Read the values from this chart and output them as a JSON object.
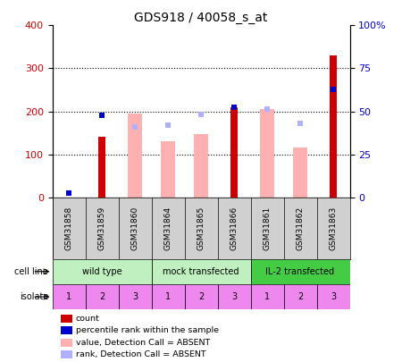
{
  "title": "GDS918 / 40058_s_at",
  "samples": [
    "GSM31858",
    "GSM31859",
    "GSM31860",
    "GSM31864",
    "GSM31865",
    "GSM31866",
    "GSM31861",
    "GSM31862",
    "GSM31863"
  ],
  "count_values": [
    0,
    140,
    0,
    0,
    0,
    210,
    0,
    0,
    330
  ],
  "percentile_values": [
    10,
    190,
    0,
    0,
    0,
    210,
    0,
    0,
    250
  ],
  "value_absent": [
    0,
    0,
    195,
    130,
    148,
    0,
    205,
    115,
    0
  ],
  "rank_absent": [
    10,
    0,
    163,
    168,
    192,
    0,
    205,
    172,
    0
  ],
  "count_color": "#cc0000",
  "percentile_color": "#0000cc",
  "value_absent_color": "#ffb0b0",
  "rank_absent_color": "#b0b0ff",
  "ylim_left": [
    0,
    400
  ],
  "ylim_right": [
    0,
    100
  ],
  "yticks_left": [
    0,
    100,
    200,
    300,
    400
  ],
  "yticks_right": [
    0,
    25,
    50,
    75,
    100
  ],
  "yticklabels_right": [
    "0",
    "25",
    "50",
    "75",
    "100%"
  ],
  "cell_line_groups": [
    {
      "label": "wild type",
      "start": 0,
      "end": 3,
      "color": "#c0f0c0"
    },
    {
      "label": "mock transfected",
      "start": 3,
      "end": 6,
      "color": "#c0f0c0"
    },
    {
      "label": "IL-2 transfected",
      "start": 6,
      "end": 9,
      "color": "#44cc44"
    }
  ],
  "isolate_values": [
    "1",
    "2",
    "3",
    "1",
    "2",
    "3",
    "1",
    "2",
    "3"
  ],
  "background_color": "#ffffff",
  "tick_label_area_color": "#d0d0d0",
  "legend_items": [
    {
      "color": "#cc0000",
      "label": "count"
    },
    {
      "color": "#0000cc",
      "label": "percentile rank within the sample"
    },
    {
      "color": "#ffb0b0",
      "label": "value, Detection Call = ABSENT"
    },
    {
      "color": "#b0b0ff",
      "label": "rank, Detection Call = ABSENT"
    }
  ]
}
